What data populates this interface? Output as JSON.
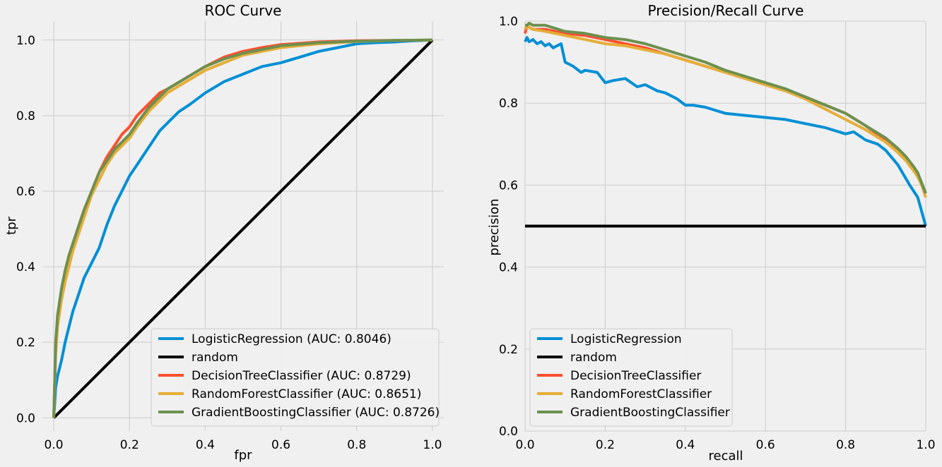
{
  "chart_data": [
    {
      "type": "line",
      "title": "ROC Curve",
      "xlabel": "fpr",
      "ylabel": "tpr",
      "xlim": [
        -0.03,
        1.03
      ],
      "ylim": [
        -0.035,
        1.05
      ],
      "xticks": [
        "0.0",
        "0.2",
        "0.4",
        "0.6",
        "0.8",
        "1.0"
      ],
      "yticks": [
        "0.0",
        "0.2",
        "0.4",
        "0.6",
        "0.8",
        "1.0"
      ],
      "grid": true,
      "legend_position": "bottom-right",
      "series": [
        {
          "name": "LogisticRegression (AUC: 0.8046)",
          "color": "#008fd5",
          "x": [
            0,
            0.005,
            0.01,
            0.02,
            0.03,
            0.04,
            0.05,
            0.06,
            0.07,
            0.08,
            0.09,
            0.1,
            0.12,
            0.14,
            0.16,
            0.18,
            0.2,
            0.22,
            0.24,
            0.26,
            0.28,
            0.3,
            0.33,
            0.36,
            0.4,
            0.45,
            0.5,
            0.55,
            0.6,
            0.65,
            0.7,
            0.75,
            0.8,
            0.85,
            0.9,
            0.95,
            1.0
          ],
          "y": [
            0,
            0.08,
            0.11,
            0.15,
            0.2,
            0.24,
            0.28,
            0.31,
            0.34,
            0.37,
            0.39,
            0.41,
            0.45,
            0.51,
            0.56,
            0.6,
            0.64,
            0.67,
            0.7,
            0.73,
            0.76,
            0.78,
            0.81,
            0.83,
            0.86,
            0.89,
            0.91,
            0.93,
            0.94,
            0.955,
            0.97,
            0.98,
            0.99,
            0.993,
            0.995,
            0.998,
            1.0
          ]
        },
        {
          "name": "random",
          "color": "#000000",
          "x": [
            0,
            1
          ],
          "y": [
            0,
            1
          ]
        },
        {
          "name": "DecisionTreeClassifier (AUC: 0.8729)",
          "color": "#fc4f30",
          "x": [
            0,
            0.005,
            0.01,
            0.02,
            0.03,
            0.04,
            0.05,
            0.06,
            0.08,
            0.1,
            0.12,
            0.14,
            0.16,
            0.18,
            0.2,
            0.22,
            0.25,
            0.28,
            0.3,
            0.35,
            0.4,
            0.45,
            0.5,
            0.55,
            0.6,
            0.7,
            0.8,
            0.9,
            1.0
          ],
          "y": [
            0,
            0.19,
            0.26,
            0.33,
            0.38,
            0.42,
            0.46,
            0.49,
            0.55,
            0.6,
            0.65,
            0.69,
            0.72,
            0.75,
            0.77,
            0.8,
            0.83,
            0.86,
            0.87,
            0.9,
            0.93,
            0.955,
            0.97,
            0.98,
            0.988,
            0.995,
            0.998,
            0.999,
            1.0
          ]
        },
        {
          "name": "RandomForestClassifier (AUC: 0.8651)",
          "color": "#e5ae38",
          "x": [
            0,
            0.005,
            0.01,
            0.02,
            0.03,
            0.04,
            0.05,
            0.06,
            0.08,
            0.1,
            0.12,
            0.14,
            0.16,
            0.18,
            0.2,
            0.22,
            0.25,
            0.28,
            0.3,
            0.35,
            0.4,
            0.45,
            0.5,
            0.55,
            0.6,
            0.7,
            0.8,
            0.9,
            1.0
          ],
          "y": [
            0,
            0.17,
            0.24,
            0.31,
            0.36,
            0.4,
            0.44,
            0.47,
            0.53,
            0.59,
            0.63,
            0.67,
            0.7,
            0.72,
            0.74,
            0.77,
            0.81,
            0.84,
            0.86,
            0.89,
            0.92,
            0.94,
            0.96,
            0.97,
            0.98,
            0.99,
            0.996,
            0.999,
            1.0
          ]
        },
        {
          "name": "GradientBoostingClassifier (AUC: 0.8726)",
          "color": "#6d904f",
          "x": [
            0,
            0.005,
            0.01,
            0.02,
            0.03,
            0.04,
            0.05,
            0.06,
            0.08,
            0.1,
            0.12,
            0.14,
            0.16,
            0.18,
            0.2,
            0.22,
            0.25,
            0.28,
            0.3,
            0.35,
            0.4,
            0.45,
            0.5,
            0.55,
            0.6,
            0.7,
            0.8,
            0.9,
            1.0
          ],
          "y": [
            0,
            0.2,
            0.27,
            0.34,
            0.39,
            0.43,
            0.46,
            0.49,
            0.55,
            0.6,
            0.65,
            0.68,
            0.71,
            0.73,
            0.75,
            0.78,
            0.82,
            0.85,
            0.87,
            0.9,
            0.93,
            0.95,
            0.965,
            0.975,
            0.985,
            0.993,
            0.997,
            0.999,
            1.0
          ]
        }
      ]
    },
    {
      "type": "line",
      "title": "Precision/Recall Curve",
      "xlabel": "recall",
      "ylabel": "precision",
      "xlim": [
        0.0,
        1.0
      ],
      "ylim": [
        0.0,
        1.0
      ],
      "xticks": [
        "0.0",
        "0.2",
        "0.4",
        "0.6",
        "0.8",
        "1.0"
      ],
      "yticks": [
        "0.0",
        "0.2",
        "0.4",
        "0.6",
        "0.8",
        "1.0"
      ],
      "grid": true,
      "legend_position": "bottom-left",
      "series": [
        {
          "name": "LogisticRegression",
          "color": "#008fd5",
          "x": [
            0,
            0.005,
            0.01,
            0.02,
            0.03,
            0.04,
            0.05,
            0.06,
            0.07,
            0.08,
            0.09,
            0.1,
            0.12,
            0.14,
            0.15,
            0.18,
            0.2,
            0.22,
            0.25,
            0.28,
            0.3,
            0.33,
            0.35,
            0.38,
            0.4,
            0.42,
            0.45,
            0.5,
            0.55,
            0.6,
            0.65,
            0.7,
            0.75,
            0.8,
            0.82,
            0.85,
            0.88,
            0.9,
            0.93,
            0.96,
            0.98,
            1.0
          ],
          "y": [
            0.95,
            0.96,
            0.95,
            0.955,
            0.945,
            0.95,
            0.94,
            0.945,
            0.935,
            0.94,
            0.945,
            0.9,
            0.89,
            0.875,
            0.88,
            0.875,
            0.85,
            0.855,
            0.86,
            0.84,
            0.845,
            0.83,
            0.825,
            0.81,
            0.795,
            0.795,
            0.79,
            0.775,
            0.77,
            0.765,
            0.76,
            0.75,
            0.74,
            0.725,
            0.73,
            0.71,
            0.7,
            0.685,
            0.65,
            0.6,
            0.57,
            0.5
          ]
        },
        {
          "name": "random",
          "color": "#000000",
          "x": [
            0,
            1
          ],
          "y": [
            0.5,
            0.5
          ]
        },
        {
          "name": "DecisionTreeClassifier",
          "color": "#fc4f30",
          "x": [
            0,
            0.005,
            0.01,
            0.02,
            0.05,
            0.1,
            0.15,
            0.2,
            0.25,
            0.3,
            0.35,
            0.4,
            0.45,
            0.5,
            0.55,
            0.6,
            0.65,
            0.7,
            0.75,
            0.8,
            0.85,
            0.9,
            0.93,
            0.95,
            0.97,
            0.98,
            0.99,
            1.0
          ],
          "y": [
            0.97,
            0.99,
            0.985,
            0.98,
            0.98,
            0.97,
            0.965,
            0.955,
            0.945,
            0.935,
            0.92,
            0.905,
            0.89,
            0.875,
            0.86,
            0.845,
            0.83,
            0.815,
            0.795,
            0.775,
            0.745,
            0.71,
            0.685,
            0.665,
            0.64,
            0.625,
            0.6,
            0.58
          ]
        },
        {
          "name": "RandomForestClassifier",
          "color": "#e5ae38",
          "x": [
            0,
            0.005,
            0.01,
            0.02,
            0.05,
            0.1,
            0.15,
            0.2,
            0.25,
            0.3,
            0.35,
            0.4,
            0.45,
            0.5,
            0.55,
            0.6,
            0.65,
            0.7,
            0.75,
            0.8,
            0.85,
            0.9,
            0.93,
            0.95,
            0.97,
            0.98,
            0.99,
            1.0
          ],
          "y": [
            0.98,
            0.99,
            0.985,
            0.98,
            0.975,
            0.965,
            0.955,
            0.945,
            0.94,
            0.93,
            0.92,
            0.905,
            0.89,
            0.875,
            0.86,
            0.845,
            0.83,
            0.81,
            0.785,
            0.76,
            0.735,
            0.705,
            0.68,
            0.66,
            0.635,
            0.62,
            0.6,
            0.57
          ]
        },
        {
          "name": "GradientBoostingClassifier",
          "color": "#6d904f",
          "x": [
            0,
            0.005,
            0.01,
            0.02,
            0.05,
            0.1,
            0.15,
            0.2,
            0.25,
            0.3,
            0.35,
            0.4,
            0.45,
            0.5,
            0.55,
            0.6,
            0.65,
            0.7,
            0.75,
            0.8,
            0.85,
            0.9,
            0.93,
            0.95,
            0.97,
            0.98,
            0.99,
            1.0
          ],
          "y": [
            0.99,
            0.99,
            0.995,
            0.99,
            0.99,
            0.975,
            0.97,
            0.96,
            0.955,
            0.945,
            0.93,
            0.915,
            0.9,
            0.88,
            0.865,
            0.85,
            0.835,
            0.815,
            0.795,
            0.775,
            0.745,
            0.715,
            0.69,
            0.67,
            0.645,
            0.63,
            0.605,
            0.58
          ]
        }
      ]
    }
  ]
}
